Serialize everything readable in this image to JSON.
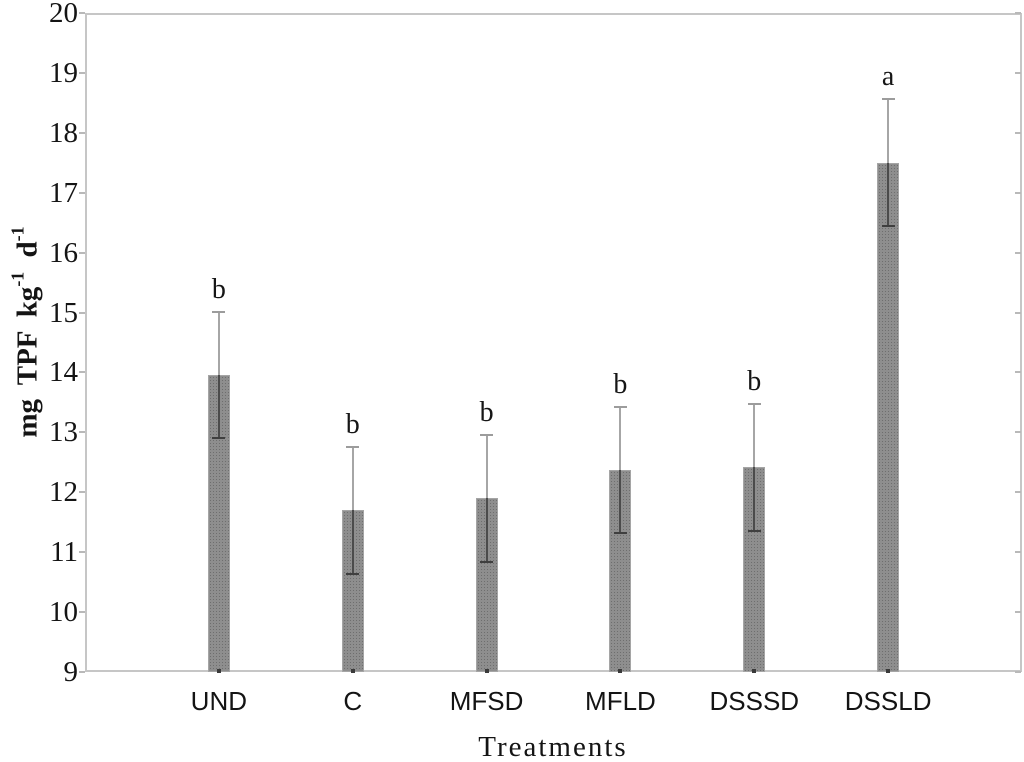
{
  "chart_data": {
    "type": "bar",
    "title": "",
    "xlabel": "Treatments",
    "ylabel": "mg TPF kg-1 d-1",
    "ylabel_runs": [
      {
        "text": "mg TPF kg",
        "sup": false
      },
      {
        "text": "-1",
        "sup": true
      },
      {
        "text": " d",
        "sup": false
      },
      {
        "text": "-1",
        "sup": true
      }
    ],
    "categories": [
      "UND",
      "C",
      "MFSD",
      "MFLD",
      "DSSSD",
      "DSSLD"
    ],
    "values": [
      13.96,
      11.7,
      11.9,
      12.37,
      12.42,
      17.5
    ],
    "errors": [
      1.05,
      1.06,
      1.06,
      1.05,
      1.06,
      1.06
    ],
    "sig_letters": [
      "b",
      "b",
      "b",
      "b",
      "b",
      "a"
    ],
    "ylim": [
      9,
      20
    ],
    "yticks": [
      9,
      10,
      11,
      12,
      13,
      14,
      15,
      16,
      17,
      18,
      19,
      20
    ],
    "grid": false,
    "legend": null,
    "colors": {
      "bar_fill": "#8e8e8e",
      "bar_dot": "#6e6e6e",
      "bar_border": "#a5a5a5",
      "error_upper": "#a6a6a6",
      "error_inner": "#4b4b4b",
      "error_cap_top": "#9c9c9c",
      "error_cap_bottom": "#3f3f3f",
      "axis_frame": "#c6c6c6",
      "tick": "#b9b9b9",
      "text": "#141414",
      "background": "#ffffff"
    }
  }
}
